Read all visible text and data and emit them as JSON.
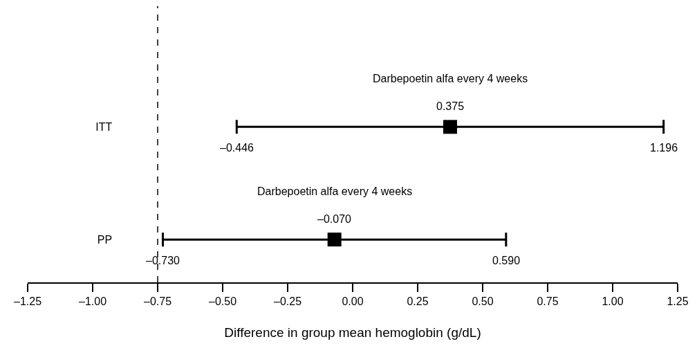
{
  "chart_data": {
    "type": "scatter",
    "orientation": "horizontal",
    "xlabel": "Difference in group mean hemoglobin (g/dL)",
    "categories": [
      "ITT",
      "PP"
    ],
    "values": [
      0.375,
      -0.07
    ],
    "value_labels": [
      "0.375",
      "–0.070"
    ],
    "errors": [
      [
        -0.446,
        1.196
      ],
      [
        -0.73,
        0.59
      ]
    ],
    "color": "#000000",
    "marker": "square",
    "xlim": [
      -1.25,
      1.25
    ],
    "xticks": [
      {
        "value": -1.25,
        "label": "–1.25"
      },
      {
        "value": -1.0,
        "label": "–1.00"
      },
      {
        "value": -0.75,
        "label": "–0.75"
      },
      {
        "value": -0.5,
        "label": "–0.50"
      },
      {
        "value": -0.25,
        "label": "–0.25"
      },
      {
        "value": 0.0,
        "label": "0.00"
      },
      {
        "value": 0.25,
        "label": "0.25"
      },
      {
        "value": 0.5,
        "label": "0.50"
      },
      {
        "value": 0.75,
        "label": "0.75"
      },
      {
        "value": 1.0,
        "label": "1.00"
      },
      {
        "value": 1.25,
        "label": "1.25"
      }
    ],
    "ref_lines": [
      {
        "axis": "x",
        "value": -0.75,
        "line_style": "dashed",
        "color": "#000000"
      }
    ],
    "annotations": [
      "Darbepoetin alfa every 4 weeks",
      "Darbepoetin alfa every 4 weeks",
      "–0.446",
      "1.196",
      "–0.730",
      "0.590"
    ]
  }
}
